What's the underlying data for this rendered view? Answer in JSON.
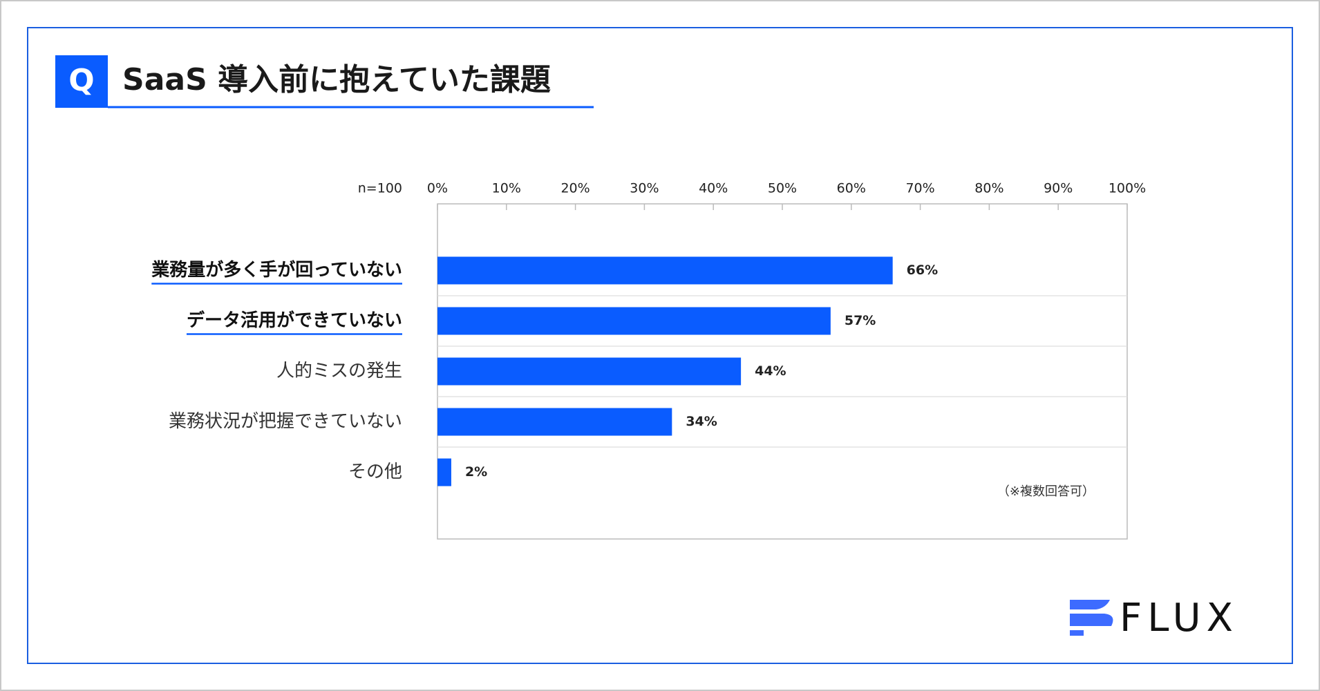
{
  "badge": "Q",
  "logo": "FLUX",
  "chart_data": {
    "type": "hbar",
    "title": "SaaS 導入前に抱えていた課題",
    "sample_label": "n=100",
    "note": "（※複数回答可）",
    "categories": [
      "業務量が多く手が回っていない",
      "データ活用ができていない",
      "人的ミスの発生",
      "業務状況が把握できていない",
      "その他"
    ],
    "highlight": [
      true,
      true,
      false,
      false,
      false
    ],
    "values": [
      66,
      57,
      44,
      34,
      2
    ],
    "value_labels": [
      "66%",
      "57%",
      "44%",
      "34%",
      "2%"
    ],
    "color": "#0a5cff",
    "xlim": [
      0,
      100
    ],
    "xticks": [
      {
        "value": 0,
        "label": "0%"
      },
      {
        "value": 10,
        "label": "10%"
      },
      {
        "value": 20,
        "label": "20%"
      },
      {
        "value": 30,
        "label": "30%"
      },
      {
        "value": 40,
        "label": "40%"
      },
      {
        "value": 50,
        "label": "50%"
      },
      {
        "value": 60,
        "label": "60%"
      },
      {
        "value": 70,
        "label": "70%"
      },
      {
        "value": 80,
        "label": "80%"
      },
      {
        "value": 90,
        "label": "90%"
      },
      {
        "value": 100,
        "label": "100%"
      }
    ],
    "grid": true
  }
}
